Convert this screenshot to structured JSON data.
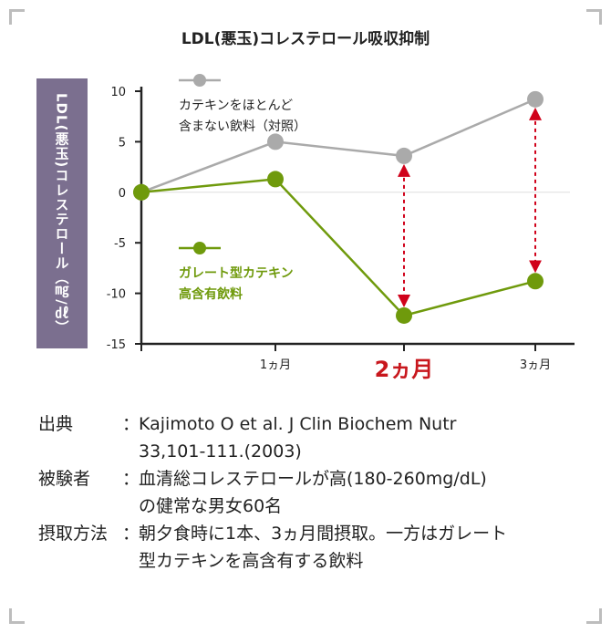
{
  "chart_data": {
    "type": "line",
    "title": "LDL(悪玉)コレステロール吸収抑制",
    "ylabel": "LDL(悪玉)コレステロール（㎎/㎗）",
    "xlabel": "",
    "categories": [
      "",
      "1ヵ月",
      "2ヵ月",
      "3ヵ月"
    ],
    "highlight_category": "2ヵ月",
    "ylim": [
      -15,
      10
    ],
    "yticks": [
      10,
      5,
      0,
      -5,
      -10,
      -15
    ],
    "grid": false,
    "legend_position": "inside-left",
    "series": [
      {
        "name": "カテキンをほとんど含まない飲料（対照）",
        "legend_lines": [
          "カテキンをほとんど",
          "含まない飲料（対照）"
        ],
        "values": [
          0,
          5,
          3.6,
          9.2
        ],
        "color": "#aaaaaa"
      },
      {
        "name": "ガレート型カテキン高含有飲料",
        "legend_lines": [
          "ガレート型カテキン",
          "高含有飲料"
        ],
        "values": [
          0,
          1.3,
          -12.2,
          -8.8
        ],
        "color": "#6f9a0c"
      }
    ],
    "difference_arrows_at": [
      "2ヵ月",
      "3ヵ月"
    ],
    "arrow_color": "#d0021b",
    "accent_color": "#c8171d"
  },
  "notes": {
    "source_label": "出典",
    "source_lines": [
      "Kajimoto O et al. J Clin Biochem Nutr",
      "33,101-111.(2003)"
    ],
    "subjects_label": "被験者",
    "subjects_lines": [
      "血清総コレステロールが高(180-260mg/dL)",
      "の健常な男女60名"
    ],
    "method_label": "摂取方法",
    "method_lines": [
      "朝夕食時に1本、3ヵ月間摂取。一方はガレート",
      "型カテキンを高含有する飲料"
    ]
  }
}
